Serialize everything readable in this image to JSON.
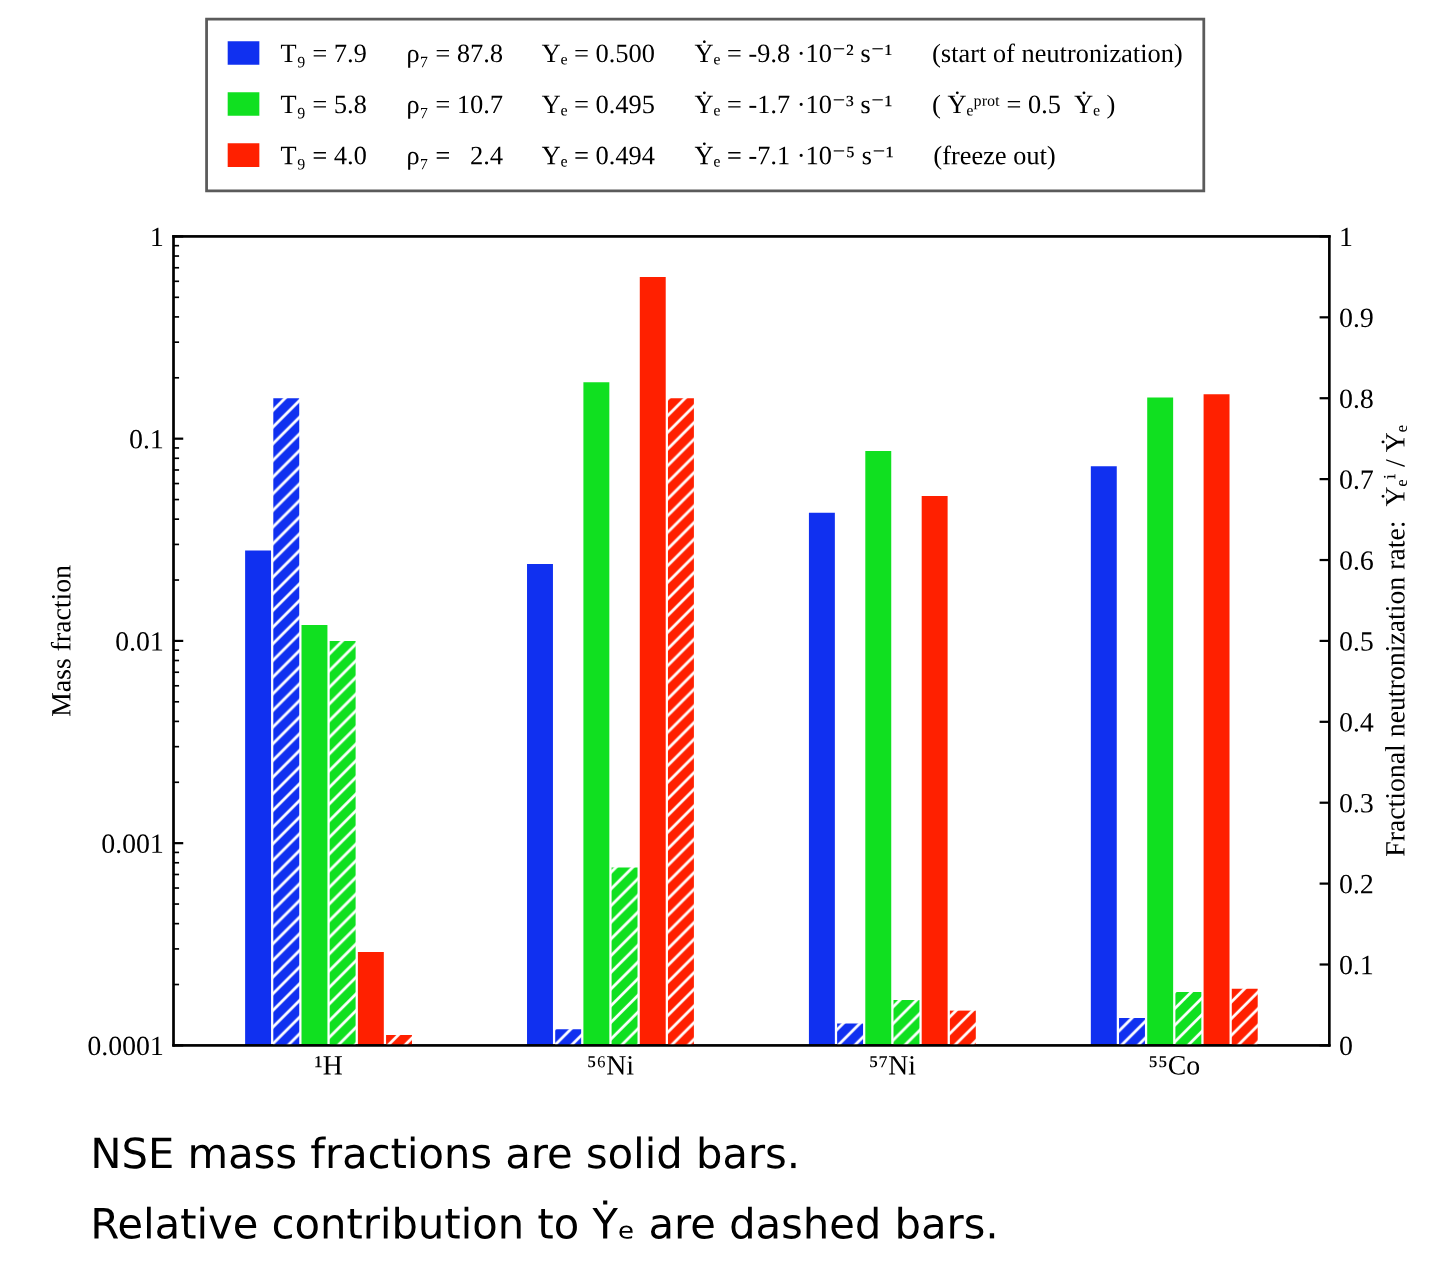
{
  "chart_data": {
    "type": "bar",
    "categories": [
      "¹H",
      "⁵⁶Ni",
      "⁵⁷Ni",
      "⁵⁵Co"
    ],
    "ylabel": "Mass fraction",
    "y2label": "Fractional neutronization rate:  Ẏₑⁱ / Ẏₑ",
    "log": "y",
    "ylim": [
      0.0001,
      1
    ],
    "yticks": [
      0.0001,
      0.001,
      0.01,
      0.1,
      1
    ],
    "y2lim": [
      0,
      1
    ],
    "y2ticks": [
      0,
      0.1,
      0.2,
      0.3,
      0.4,
      0.5,
      0.6,
      0.7,
      0.8,
      0.9,
      1
    ],
    "legend": "top",
    "grid": false,
    "series": [
      {
        "name": "T₉ = 7.9      ρ₇ = 87.8      Yₑ = 0.500      Ẏₑ = -9.8 ·10⁻² s⁻¹      (start of neutronization)",
        "color": "#1030f0",
        "values": [
          0.028,
          0.024,
          0.043,
          0.073
        ]
      },
      {
        "color": "#1030f0",
        "axis": "y2",
        "values": [
          0.8,
          0.02,
          0.027,
          0.034
        ]
      },
      {
        "name": "T₉ = 5.8      ρ₇ = 10.7      Yₑ = 0.495      Ẏₑ = -1.7 ·10⁻³ s⁻¹      ( Ẏₑᵖʳᵒᵗ = 0.5  Ẏₑ )",
        "color": "#10e020",
        "values": [
          0.012,
          0.19,
          0.087,
          0.16
        ]
      },
      {
        "color": "#10e020",
        "axis": "y2",
        "values": [
          0.5,
          0.22,
          0.056,
          0.066
        ]
      },
      {
        "name": "T₉ = 4.0      ρ₇ =   2.4      Yₑ = 0.494      Ẏₑ = -7.1 ·10⁻⁵ s⁻¹      (freeze out)",
        "color": "#ff2000",
        "values": [
          0.00029,
          0.63,
          0.052,
          0.166
        ]
      },
      {
        "color": "#ff2000",
        "axis": "y2",
        "values": [
          0.013,
          0.8,
          0.043,
          0.07
        ]
      }
    ],
    "annotations": [
      "NSE mass fractions are solid bars.",
      "Relative contribution to Ẏₑ are dashed bars."
    ]
  }
}
